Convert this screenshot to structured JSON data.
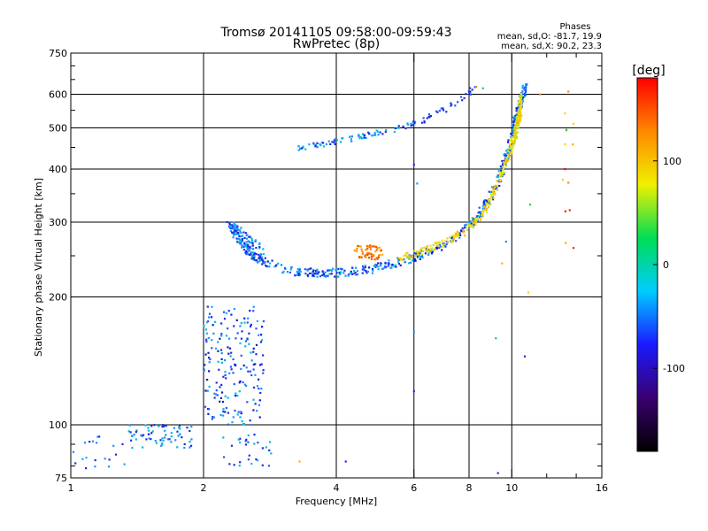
{
  "chart_data": {
    "type": "scatter",
    "title": "Tromsø 20141105 09:58:00-09:59:43",
    "subtitle": "RwPretec (8p)",
    "xlabel": "Frequency [MHz]",
    "ylabel": "Stationary phase Virtual Height [km]",
    "x_scale": "log",
    "y_scale": "log",
    "xlim": [
      1,
      16
    ],
    "ylim": [
      75,
      750
    ],
    "x_ticks": [
      1,
      2,
      4,
      6,
      8,
      10,
      16
    ],
    "x_minor_ticks": [
      12,
      14
    ],
    "y_ticks": [
      75,
      100,
      200,
      300,
      400,
      500,
      600,
      750
    ],
    "y_minor_ticks": [
      80,
      90,
      250,
      350,
      450,
      550,
      650,
      700
    ],
    "x_gridlines": [
      2,
      4,
      6,
      8,
      10
    ],
    "y_gridlines": [
      100,
      200,
      300,
      400,
      500,
      600
    ],
    "grid": true,
    "stats": {
      "heading": "Phases",
      "line_o": "mean, sd,O: -81.7, 19.9",
      "line_x": "mean, sd,X:  90.2, 23.3"
    },
    "colorbar": {
      "label": "[deg]",
      "range": [
        -180,
        180
      ],
      "ticks": [
        100,
        0,
        -100
      ],
      "stops": [
        "#000000",
        "#3a0070",
        "#1a1aff",
        "#00ccff",
        "#00dd55",
        "#f0f000",
        "#ff8800",
        "#ff0000"
      ]
    },
    "series": [
      {
        "kind": "band",
        "x": [
          2.3,
          2.4,
          2.6,
          2.9,
          3.2,
          3.6,
          4.0,
          4.6,
          5.3,
          6.0,
          6.8,
          7.6,
          8.3,
          8.9,
          9.4,
          9.8,
          10.1,
          10.4,
          10.6,
          10.7
        ],
        "y": [
          300,
          272,
          250,
          236,
          230,
          228,
          228,
          231,
          238,
          248,
          262,
          280,
          305,
          340,
          385,
          440,
          500,
          555,
          600,
          630
        ],
        "spread": 0.045,
        "n": 560,
        "colors": [
          "#1a2fe0",
          "#0a1ccc",
          "#2255ff",
          "#1e90ff",
          "#00b8e6"
        ]
      },
      {
        "kind": "band",
        "x": [
          5.5,
          6.2,
          7.0,
          7.8,
          8.5,
          9.0,
          9.5,
          9.9,
          10.2,
          10.4,
          10.5
        ],
        "y": [
          247,
          255,
          268,
          285,
          310,
          345,
          390,
          440,
          490,
          540,
          600
        ],
        "spread": 0.035,
        "n": 300,
        "colors": [
          "#e8e800",
          "#c8e000",
          "#ffd000",
          "#b0e040",
          "#ffb000"
        ]
      },
      {
        "kind": "band",
        "x": [
          3.2,
          3.6,
          4.0,
          4.5,
          5.0,
          5.6,
          6.0
        ],
        "y": [
          445,
          455,
          465,
          475,
          488,
          500,
          510
        ],
        "spread": 0.03,
        "n": 80,
        "colors": [
          "#1a2fe0",
          "#1e90ff",
          "#00b8e6"
        ]
      },
      {
        "kind": "band",
        "x": [
          6.0,
          6.5,
          7.0,
          7.5,
          8.0,
          8.4
        ],
        "y": [
          510,
          530,
          550,
          575,
          605,
          640
        ],
        "spread": 0.03,
        "n": 35,
        "colors": [
          "#1a2fe0",
          "#2255ff"
        ]
      },
      {
        "kind": "band",
        "x": [
          2.3,
          2.5,
          2.7
        ],
        "y": [
          300,
          270,
          250
        ],
        "spread": 0.09,
        "n": 90,
        "colors": [
          "#1e90ff",
          "#00b8e6",
          "#1a2fe0"
        ]
      },
      {
        "kind": "cluster",
        "x": [
          2.0,
          2.75
        ],
        "y": [
          100,
          190
        ],
        "n": 190,
        "colors": [
          "#1a2fe0",
          "#2255ff",
          "#0a1ccc",
          "#1e90ff",
          "#00b8e6"
        ]
      },
      {
        "kind": "cluster",
        "x": [
          1.35,
          1.9
        ],
        "y": [
          88,
          100
        ],
        "n": 70,
        "colors": [
          "#1a2fe0",
          "#1e90ff",
          "#00b8e6"
        ]
      },
      {
        "kind": "cluster",
        "x": [
          1.0,
          1.35
        ],
        "y": [
          79,
          95
        ],
        "n": 20,
        "colors": [
          "#1e90ff",
          "#00b8e6",
          "#1a2fe0"
        ]
      },
      {
        "kind": "cluster",
        "x": [
          2.2,
          2.9
        ],
        "y": [
          80,
          95
        ],
        "n": 30,
        "colors": [
          "#1a2fe0",
          "#2255ff",
          "#00b8e6"
        ]
      },
      {
        "kind": "cluster",
        "x": [
          4.4,
          5.1
        ],
        "y": [
          245,
          265
        ],
        "n": 60,
        "colors": [
          "#ff8800",
          "#ff6a00",
          "#ffb000",
          "#e05000"
        ]
      },
      {
        "kind": "cluster",
        "x": [
          13.0,
          13.8
        ],
        "y": [
          250,
          620
        ],
        "n": 12,
        "colors": [
          "#ffb000",
          "#ff8800",
          "#ff2200",
          "#ffd000"
        ]
      }
    ],
    "scatter_points": [
      {
        "x": 8.3,
        "y": 625,
        "c": "#ff8800"
      },
      {
        "x": 8.6,
        "y": 620,
        "c": "#00dd55"
      },
      {
        "x": 11.6,
        "y": 600,
        "c": "#ff8800"
      },
      {
        "x": 13.3,
        "y": 495,
        "c": "#00dd55"
      },
      {
        "x": 13.2,
        "y": 400,
        "c": "#ff0000"
      },
      {
        "x": 9.2,
        "y": 160,
        "c": "#00dd55"
      },
      {
        "x": 10.7,
        "y": 145,
        "c": "#1a2fe0"
      },
      {
        "x": 9.3,
        "y": 77,
        "c": "#1a2fe0"
      },
      {
        "x": 6.0,
        "y": 165,
        "c": "#1e90ff"
      },
      {
        "x": 6.0,
        "y": 120,
        "c": "#1a2fe0"
      },
      {
        "x": 4.2,
        "y": 82,
        "c": "#1a2fe0"
      },
      {
        "x": 3.3,
        "y": 82,
        "c": "#ffb000"
      },
      {
        "x": 6.0,
        "y": 410,
        "c": "#1a2fe0"
      },
      {
        "x": 6.1,
        "y": 370,
        "c": "#1e90ff"
      },
      {
        "x": 11.0,
        "y": 330,
        "c": "#00dd55"
      },
      {
        "x": 10.9,
        "y": 205,
        "c": "#ffd000"
      },
      {
        "x": 9.7,
        "y": 270,
        "c": "#1e90ff"
      },
      {
        "x": 9.5,
        "y": 240,
        "c": "#ffb000"
      }
    ]
  }
}
